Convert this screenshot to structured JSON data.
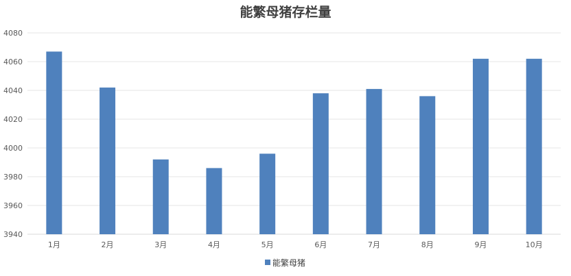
{
  "chart_data": {
    "type": "bar",
    "title": "能繁母猪存栏量",
    "xlabel": "",
    "ylabel": "",
    "categories": [
      "1月",
      "2月",
      "3月",
      "4月",
      "5月",
      "6月",
      "7月",
      "8月",
      "9月",
      "10月"
    ],
    "series": [
      {
        "name": "能繁母猪",
        "color": "#4F81BD",
        "values": [
          4067,
          4042,
          3992,
          3986,
          3996,
          4038,
          4041,
          4036,
          4062,
          4062
        ]
      }
    ],
    "ylim": [
      3940,
      4080
    ],
    "yticks": [
      3940,
      3960,
      3980,
      4000,
      4020,
      4040,
      4060,
      4080
    ],
    "grid": true,
    "legend_position": "bottom"
  }
}
